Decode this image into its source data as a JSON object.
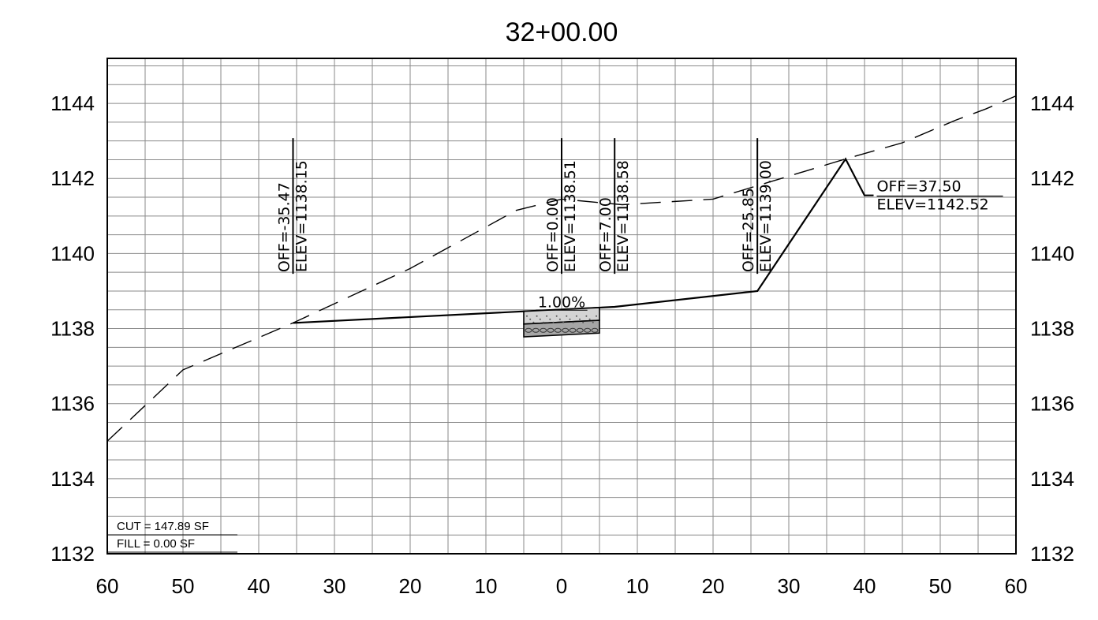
{
  "chart_data": {
    "type": "line",
    "title": "32+00.00",
    "xlim": [
      -60,
      60
    ],
    "ylim": [
      1132,
      1145.2
    ],
    "x_ticks": [
      -60,
      -50,
      -40,
      -30,
      -20,
      -10,
      0,
      10,
      20,
      30,
      40,
      50,
      60
    ],
    "x_tick_labels": [
      "60",
      "50",
      "40",
      "30",
      "20",
      "10",
      "0",
      "10",
      "20",
      "30",
      "40",
      "50",
      "60"
    ],
    "y_ticks": [
      1132,
      1134,
      1136,
      1138,
      1140,
      1142,
      1144
    ],
    "y_tick_labels": [
      "1132",
      "1134",
      "1136",
      "1138",
      "1140",
      "1142",
      "1144"
    ],
    "grid": true,
    "series": [
      {
        "style": "dashed",
        "x": [
          -60,
          -50,
          -35.47,
          -20,
          -6,
          0,
          8,
          20,
          37.5,
          45,
          52,
          56,
          60
        ],
        "y": [
          1135.0,
          1136.9,
          1138.15,
          1139.6,
          1141.15,
          1141.45,
          1141.3,
          1141.45,
          1142.52,
          1142.95,
          1143.55,
          1143.85,
          1144.2
        ]
      },
      {
        "style": "solid",
        "x": [
          -35.47,
          0,
          7,
          25.85,
          37.5,
          40,
          41.2
        ],
        "y": [
          1138.15,
          1138.51,
          1138.58,
          1139.0,
          1142.52,
          1141.55,
          1141.55
        ]
      }
    ],
    "pavement": {
      "x_range": [
        -5,
        5
      ],
      "top_y": [
        1138.46,
        1138.56
      ],
      "mid_y": [
        1138.12,
        1138.22
      ],
      "bot_y": [
        1137.78,
        1137.88
      ]
    },
    "point_labels": [
      {
        "off": "OFF=-35.47",
        "elev": "ELEV=1138.15",
        "x": -35.47,
        "orientation": "vertical"
      },
      {
        "off": "OFF=0.00",
        "elev": "ELEV=1138.51",
        "x": 0,
        "orientation": "vertical"
      },
      {
        "off": "OFF=7.00",
        "elev": "ELEV=1138.58",
        "x": 7,
        "orientation": "vertical"
      },
      {
        "off": "OFF=25.85",
        "elev": "ELEV=1139.00",
        "x": 25.85,
        "orientation": "vertical"
      },
      {
        "off": "OFF=37.50",
        "elev": "ELEV=1142.52",
        "x": 37.5,
        "orientation": "horizontal"
      }
    ],
    "slope_label": "1.00%",
    "quantities": {
      "cut": "CUT = 147.89 SF",
      "fill": "FILL = 0.00 SF"
    }
  }
}
